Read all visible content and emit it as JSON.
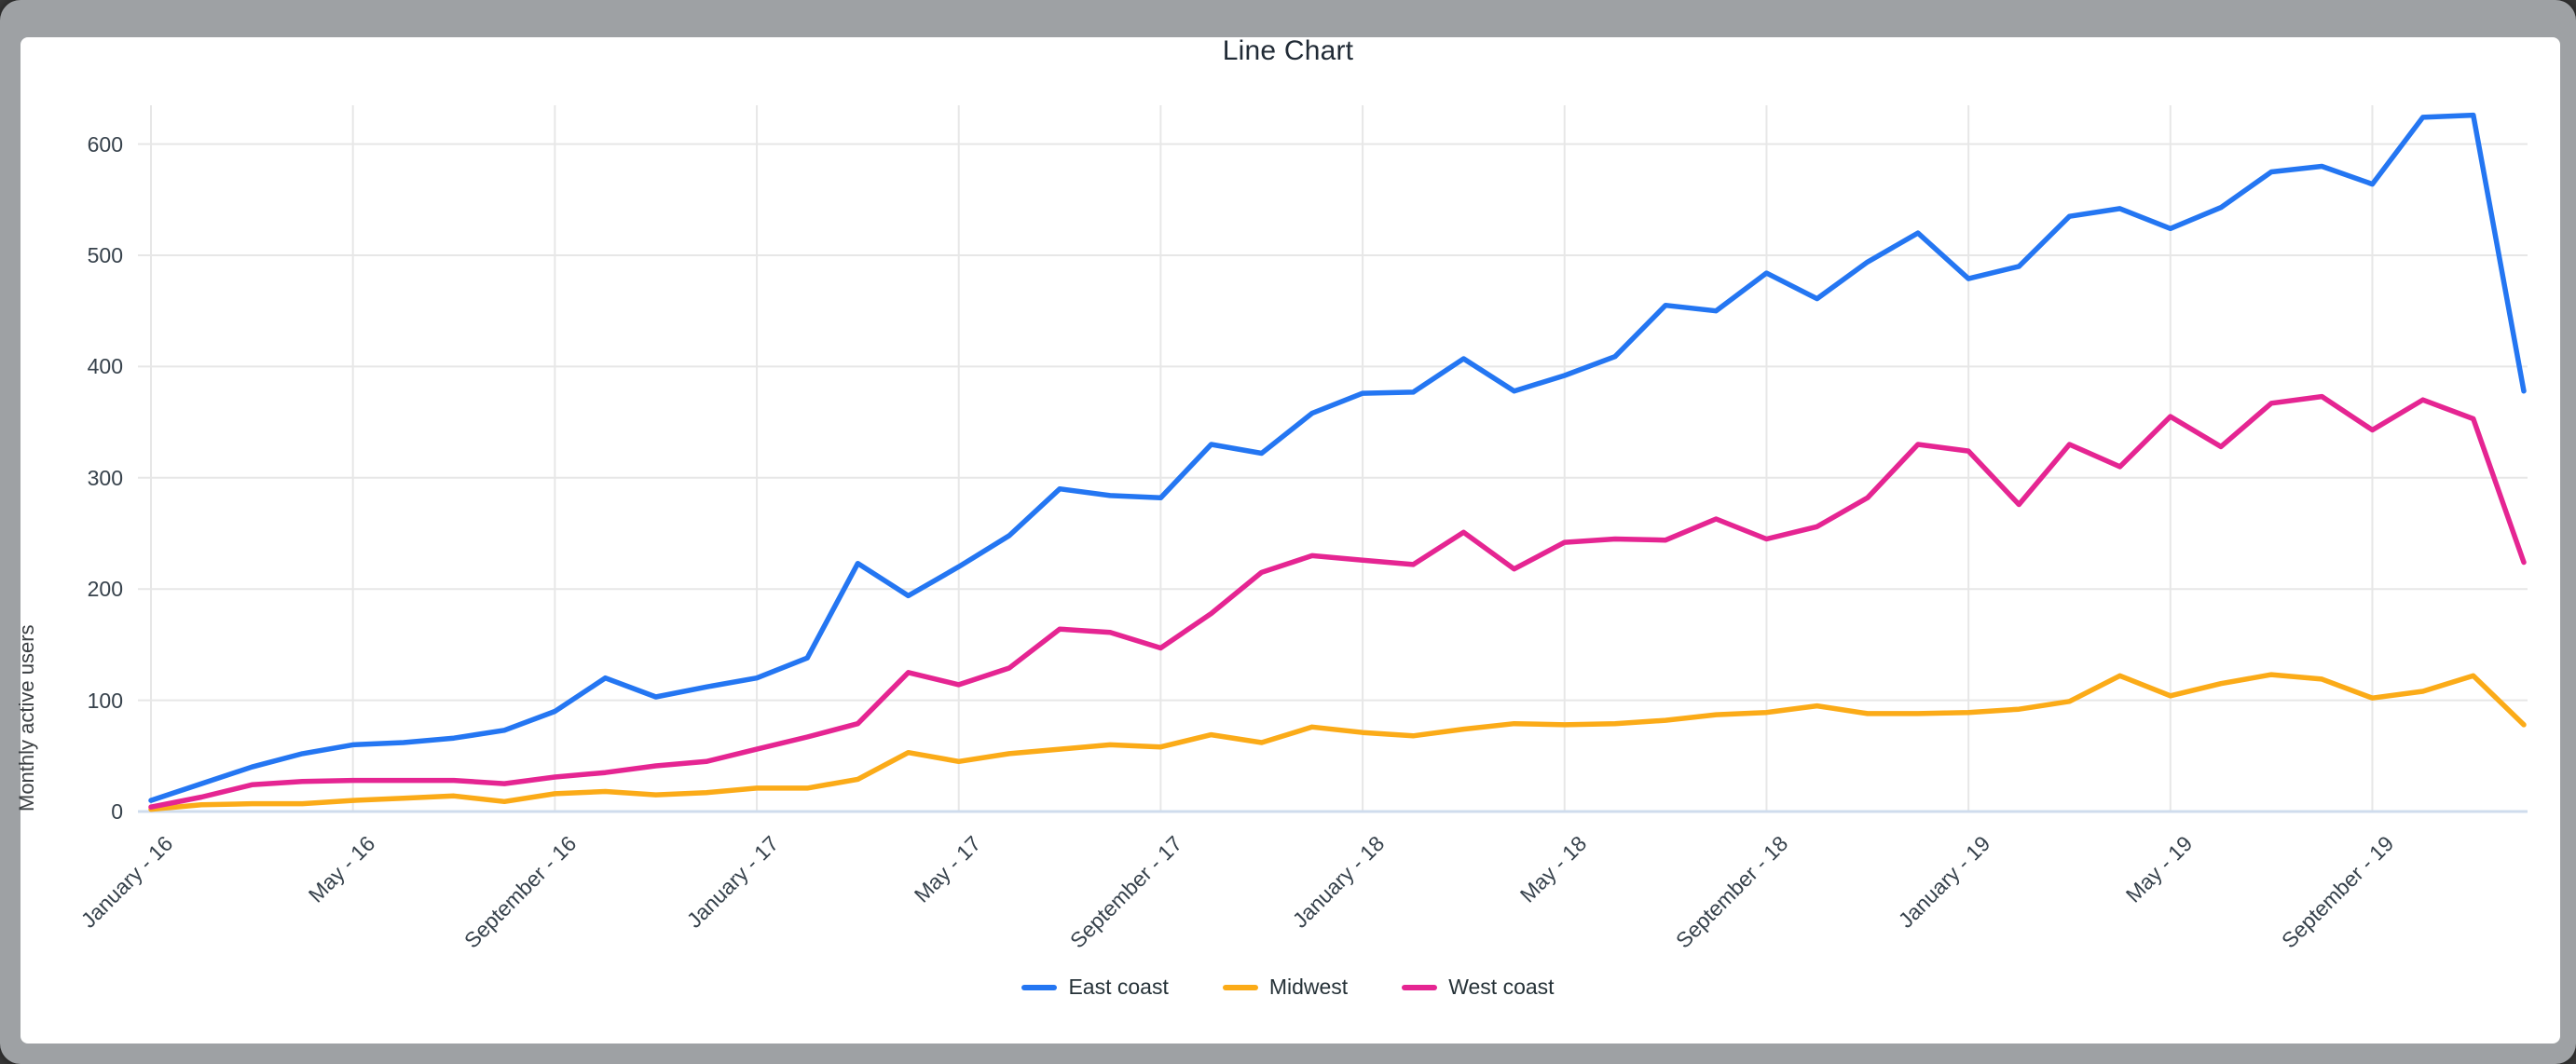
{
  "window": {
    "surround_color": "#9ea1a4",
    "card_color": "#ffffff"
  },
  "chart_data": {
    "type": "line",
    "title": "Line Chart",
    "ylabel": "Monthly active users",
    "xlabel": "",
    "grid": true,
    "legend_position": "bottom",
    "ylim": [
      0,
      650
    ],
    "y_ticks": [
      0,
      100,
      200,
      300,
      400,
      500,
      600
    ],
    "y_tick_labels": [
      "0",
      "100",
      "200",
      "300",
      "400",
      "500",
      "600"
    ],
    "x_tick_labels": [
      "January - 16",
      "May - 16",
      "September - 16",
      "January - 17",
      "May - 17",
      "September - 17",
      "January - 18",
      "May - 18",
      "September - 18",
      "January - 19",
      "May - 19",
      "September - 19"
    ],
    "points_per_tick": 4,
    "n_points": 48,
    "colors": {
      "gridline": "#e7e7e7",
      "baseline": "#cfdced",
      "tick_text": "#37424c",
      "title_text": "#212b36"
    },
    "series": [
      {
        "name": "East coast",
        "color": "#2476f2",
        "values": [
          10,
          25,
          40,
          52,
          60,
          62,
          66,
          73,
          90,
          120,
          103,
          112,
          120,
          138,
          223,
          194,
          220,
          248,
          290,
          284,
          282,
          330,
          322,
          358,
          376,
          377,
          407,
          378,
          392,
          409,
          455,
          450,
          484,
          461,
          494,
          520,
          479,
          490,
          535,
          542,
          524,
          543,
          575,
          580,
          564,
          624,
          626,
          378
        ]
      },
      {
        "name": "Midwest",
        "color": "#fbab18",
        "values": [
          2,
          6,
          7,
          7,
          10,
          12,
          14,
          9,
          16,
          18,
          15,
          17,
          21,
          21,
          29,
          53,
          45,
          52,
          56,
          60,
          58,
          69,
          62,
          76,
          71,
          68,
          74,
          79,
          78,
          79,
          82,
          87,
          89,
          95,
          88,
          88,
          89,
          92,
          99,
          122,
          104,
          115,
          123,
          119,
          102,
          108,
          122,
          78
        ]
      },
      {
        "name": "West coast",
        "color": "#e52592",
        "values": [
          4,
          13,
          24,
          27,
          28,
          28,
          28,
          25,
          31,
          35,
          41,
          45,
          56,
          67,
          79,
          125,
          114,
          129,
          164,
          161,
          147,
          178,
          215,
          230,
          226,
          222,
          251,
          218,
          242,
          245,
          244,
          263,
          245,
          256,
          282,
          330,
          324,
          276,
          330,
          310,
          355,
          328,
          367,
          373,
          343,
          370,
          353,
          224
        ]
      }
    ]
  }
}
